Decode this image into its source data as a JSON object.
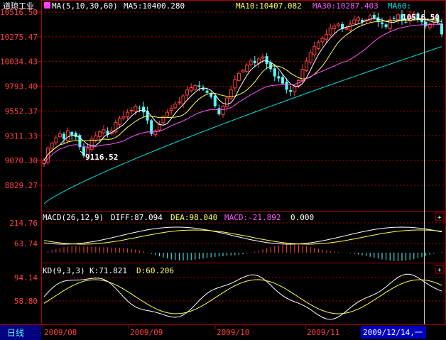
{
  "header": {
    "name": "道琼工业",
    "ma_label": "MA(5,10,30,60)",
    "ma5": "MA5:10400.280",
    "ma10": "MA10:10407.082",
    "ma30": "MA30:10287.403",
    "ma60": "MA60:"
  },
  "macd_header": {
    "name": "MACD(26,12,9)",
    "diff": "DIFF:87.094",
    "dea": "DEA:98.040",
    "macd": "MACD:-21.892",
    "zero": "0.000"
  },
  "kd_header": {
    "name": "KD(9,3,3)",
    "k": "K:71.821",
    "d": "D:60.206"
  },
  "annotations": {
    "low": "9116.52",
    "high": "10516.50"
  },
  "bottom": {
    "period_button": "日线",
    "months": [
      "2009/08",
      "2009/09",
      "2009/10",
      "2009/11"
    ],
    "cursor_date": "2009/12/14,一"
  },
  "colors": {
    "up": "#ff4040",
    "down": "#54ffff",
    "ma5": "#ffffff",
    "ma10": "#ffff54",
    "ma30": "#ff54ff",
    "ma60": "#00e0e0",
    "axis": "#b00000",
    "label": "#ff4040"
  },
  "chart_data": [
    {
      "type": "candlestick",
      "title": "道琼工业",
      "yticks": [
        "10516.50",
        "10275.47",
        "10034.43",
        "9793.40",
        "9552.37",
        "9311.33",
        "9070.30",
        "8829.27"
      ],
      "ylim": [
        8650,
        10560
      ],
      "x": [
        "2009/08",
        "2009/09",
        "2009/10",
        "2009/11",
        "2009/12/14"
      ],
      "close_series": [
        9070,
        9190,
        9240,
        9290,
        9330,
        9280,
        9360,
        9320,
        9300,
        9200,
        9116,
        9190,
        9280,
        9310,
        9350,
        9370,
        9320,
        9360,
        9440,
        9480,
        9500,
        9540,
        9560,
        9600,
        9580,
        9540,
        9460,
        9330,
        9360,
        9420,
        9500,
        9540,
        9580,
        9620,
        9640,
        9700,
        9760,
        9780,
        9800,
        9790,
        9760,
        9730,
        9690,
        9600,
        9520,
        9600,
        9680,
        9760,
        9860,
        9920,
        9950,
        10000,
        10040,
        10020,
        10060,
        10080,
        10010,
        9960,
        9890,
        9870,
        9820,
        9760,
        9740,
        9790,
        9850,
        9960,
        10040,
        10120,
        10180,
        10220,
        10260,
        10300,
        10360,
        10380,
        10400,
        10350,
        10360,
        10400,
        10440,
        10460,
        10420,
        10440,
        10480,
        10460,
        10420,
        10400,
        10370,
        10440,
        10450,
        10490,
        10430,
        10420,
        10480,
        10500,
        10440,
        10420,
        10380,
        10400,
        10460,
        10420,
        10300
      ],
      "ma60_start": 8650,
      "ma60_end": 10180,
      "marked_low": 9116.52,
      "marked_high": 10516.5
    },
    {
      "type": "line",
      "title": "MACD(26,12,9)",
      "yticks": [
        "214.76",
        "63.74"
      ],
      "series": [
        {
          "name": "DIFF",
          "last": 87.094
        },
        {
          "name": "DEA",
          "last": 98.04
        },
        {
          "name": "MACD",
          "last": -21.892
        }
      ]
    },
    {
      "type": "line",
      "title": "KD(9,3,3)",
      "yticks": [
        "94.14",
        "58.80"
      ],
      "series": [
        {
          "name": "K",
          "last": 71.821
        },
        {
          "name": "D",
          "last": 60.206
        }
      ]
    }
  ]
}
